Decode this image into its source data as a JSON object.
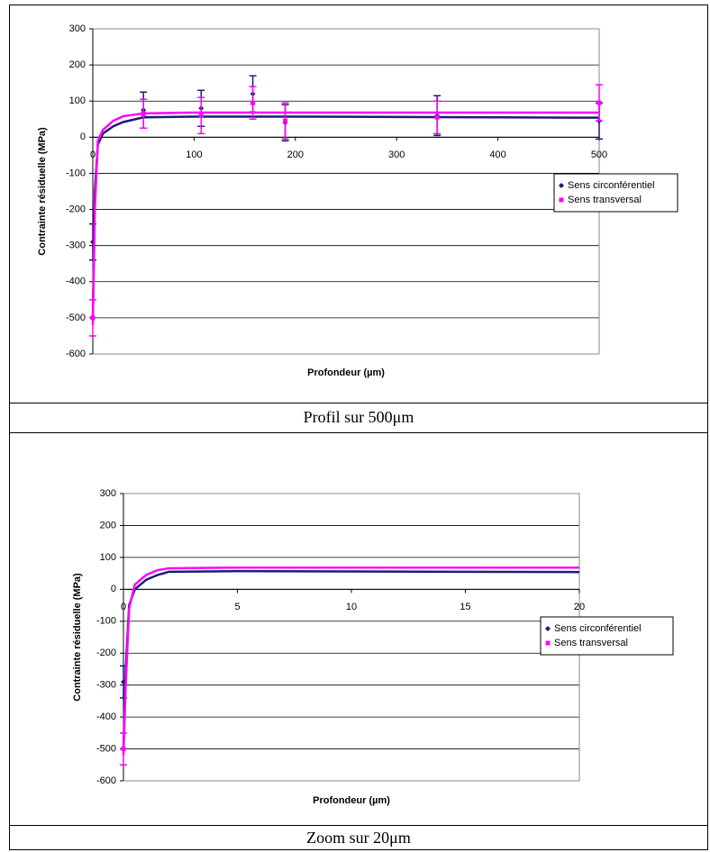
{
  "table": {
    "captions": [
      "Profil sur 500μm",
      "Zoom sur 20μm"
    ]
  },
  "chart_data": [
    {
      "type": "scatter",
      "y_label": "Contrainte résiduelle (MPa)",
      "x_label": "Profondeur (µm)",
      "xlim": [
        0,
        500
      ],
      "xticks": [
        0,
        100,
        200,
        300,
        400,
        500
      ],
      "ylim": [
        -600,
        300
      ],
      "yticks": [
        -600,
        -500,
        -400,
        -300,
        -200,
        -100,
        0,
        100,
        200,
        300
      ],
      "grid": true,
      "legend": "right",
      "series": [
        {
          "name": "Sens circonférentiel",
          "color": "#1c1c74",
          "marker": "diamond",
          "x": [
            0,
            50,
            107,
            158,
            190,
            340,
            500
          ],
          "values": [
            -290,
            75,
            80,
            120,
            40,
            60,
            45
          ],
          "errors": [
            50,
            50,
            50,
            50,
            50,
            55,
            50
          ],
          "fit_x": [
            0,
            2,
            5,
            10,
            20,
            30,
            50,
            100,
            200,
            300,
            400,
            500
          ],
          "fit_values": [
            -500,
            -150,
            -20,
            10,
            30,
            42,
            55,
            57,
            57,
            56,
            55,
            54
          ]
        },
        {
          "name": "Sens transversal",
          "color": "#ff00ff",
          "marker": "square",
          "x": [
            0,
            50,
            107,
            158,
            190,
            340,
            500
          ],
          "values": [
            -500,
            65,
            60,
            95,
            45,
            55,
            95
          ],
          "errors": [
            50,
            40,
            50,
            45,
            50,
            45,
            50
          ],
          "fit_x": [
            0,
            2,
            5,
            10,
            20,
            30,
            50,
            100,
            200,
            300,
            400,
            500
          ],
          "fit_values": [
            -520,
            -200,
            -10,
            20,
            45,
            58,
            66,
            68,
            68,
            68,
            68,
            68
          ]
        }
      ]
    },
    {
      "type": "scatter",
      "y_label": "Contrainte résiduelle (MPa)",
      "x_label": "Profondeur (µm)",
      "xlim": [
        0,
        20
      ],
      "xticks": [
        0,
        5,
        10,
        15,
        20
      ],
      "ylim": [
        -600,
        300
      ],
      "yticks": [
        -600,
        -500,
        -400,
        -300,
        -200,
        -100,
        0,
        100,
        200,
        300
      ],
      "grid": true,
      "legend": "right",
      "series": [
        {
          "name": "Sens circonférentiel",
          "color": "#1c1c74",
          "marker": "diamond",
          "x": [
            0
          ],
          "values": [
            -290
          ],
          "errors": [
            50
          ],
          "fit_x": [
            0,
            0.1,
            0.25,
            0.5,
            1,
            1.5,
            2,
            5,
            10,
            15,
            20
          ],
          "fit_values": [
            -500,
            -250,
            -50,
            0,
            30,
            45,
            55,
            57,
            56,
            55,
            54
          ]
        },
        {
          "name": "Sens transversal",
          "color": "#ff00ff",
          "marker": "square",
          "x": [
            0
          ],
          "values": [
            -500
          ],
          "errors": [
            50
          ],
          "fit_x": [
            0,
            0.1,
            0.25,
            0.5,
            1,
            1.5,
            2,
            5,
            10,
            15,
            20
          ],
          "fit_values": [
            -520,
            -300,
            -60,
            15,
            45,
            60,
            66,
            68,
            68,
            68,
            68
          ]
        }
      ]
    }
  ]
}
